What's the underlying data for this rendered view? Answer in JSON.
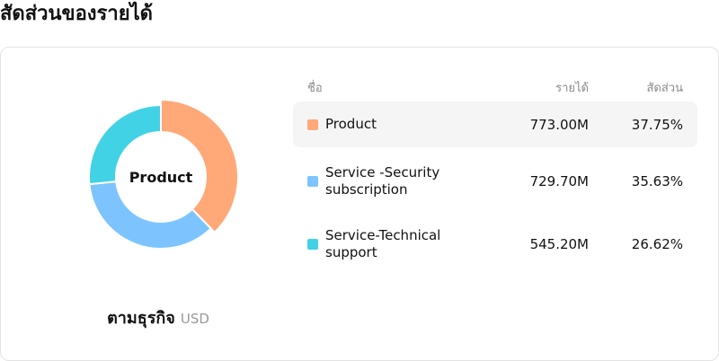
{
  "title": "สัดส่วนของรายได้",
  "donut": {
    "center_label": "Product",
    "caption_main": "ตามธุรกิจ",
    "caption_unit": "USD",
    "segments": [
      {
        "name": "Product",
        "share": 37.75,
        "color": "#FFA878"
      },
      {
        "name": "Service -Security subscription",
        "share": 35.63,
        "color": "#7DC4FF"
      },
      {
        "name": "Service-Technical support",
        "share": 26.62,
        "color": "#41D2E6"
      }
    ]
  },
  "table": {
    "headers": {
      "name": "ชื่อ",
      "revenue": "รายได้",
      "share": "สัดส่วน"
    },
    "rows": [
      {
        "name": "Product",
        "revenue": "773.00M",
        "share": "37.75%",
        "color": "#FFA878"
      },
      {
        "name": "Service -Security subscription",
        "revenue": "729.70M",
        "share": "35.63%",
        "color": "#7DC4FF"
      },
      {
        "name": "Service-Technical support",
        "revenue": "545.20M",
        "share": "26.62%",
        "color": "#41D2E6"
      }
    ]
  }
}
